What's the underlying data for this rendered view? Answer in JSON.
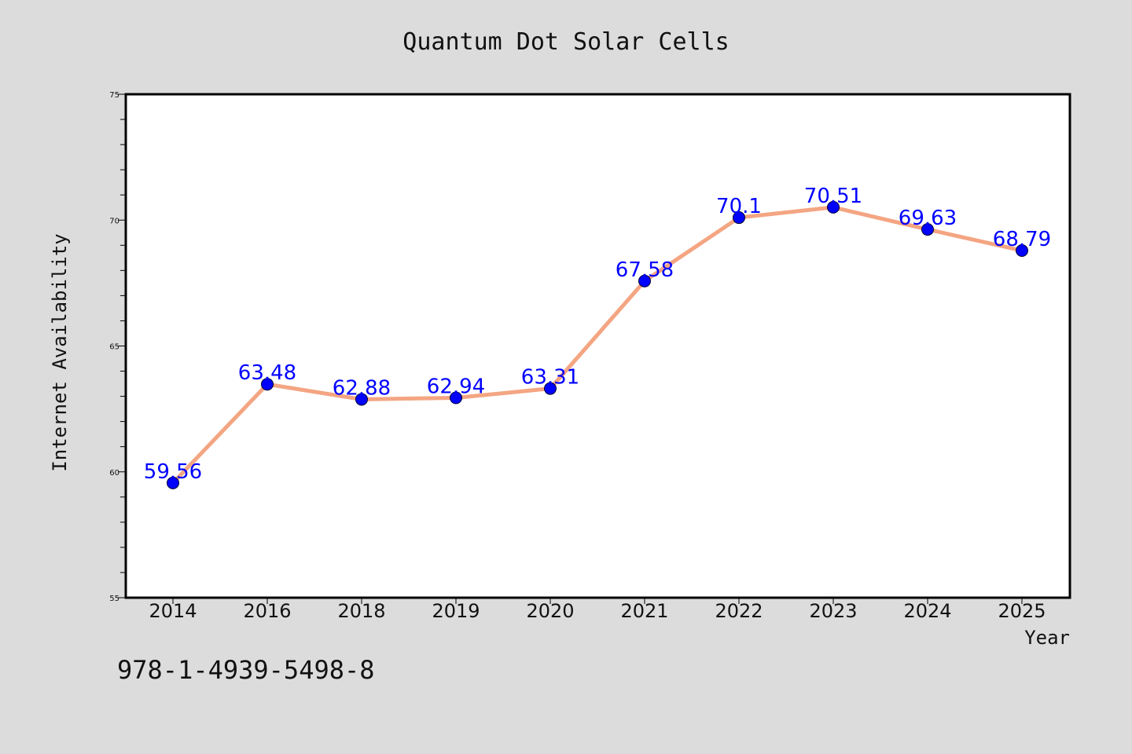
{
  "chart_data": {
    "type": "line",
    "title": "Quantum Dot Solar Cells",
    "xlabel": "Year",
    "ylabel": "Internet Availability",
    "categories": [
      "2014",
      "2016",
      "2018",
      "2019",
      "2020",
      "2021",
      "2022",
      "2023",
      "2024",
      "2025"
    ],
    "series": [
      {
        "values": [
          59.56,
          63.48,
          62.88,
          62.94,
          63.31,
          67.58,
          70.1,
          70.51,
          69.63,
          68.79
        ],
        "labels": [
          "59.56",
          "63.48",
          "62.88",
          "62.94",
          "63.31",
          "67.58",
          "70.1",
          "70.51",
          "69.63",
          "68.79"
        ]
      }
    ],
    "ylim": [
      55,
      75
    ],
    "yticks": [
      "55",
      "60",
      "65",
      "70",
      "75"
    ],
    "grid": false,
    "line_color": "#f4a582",
    "marker_color": "#0000ff",
    "label_color": "#0000ff"
  },
  "footnote": "978-1-4939-5498-8"
}
